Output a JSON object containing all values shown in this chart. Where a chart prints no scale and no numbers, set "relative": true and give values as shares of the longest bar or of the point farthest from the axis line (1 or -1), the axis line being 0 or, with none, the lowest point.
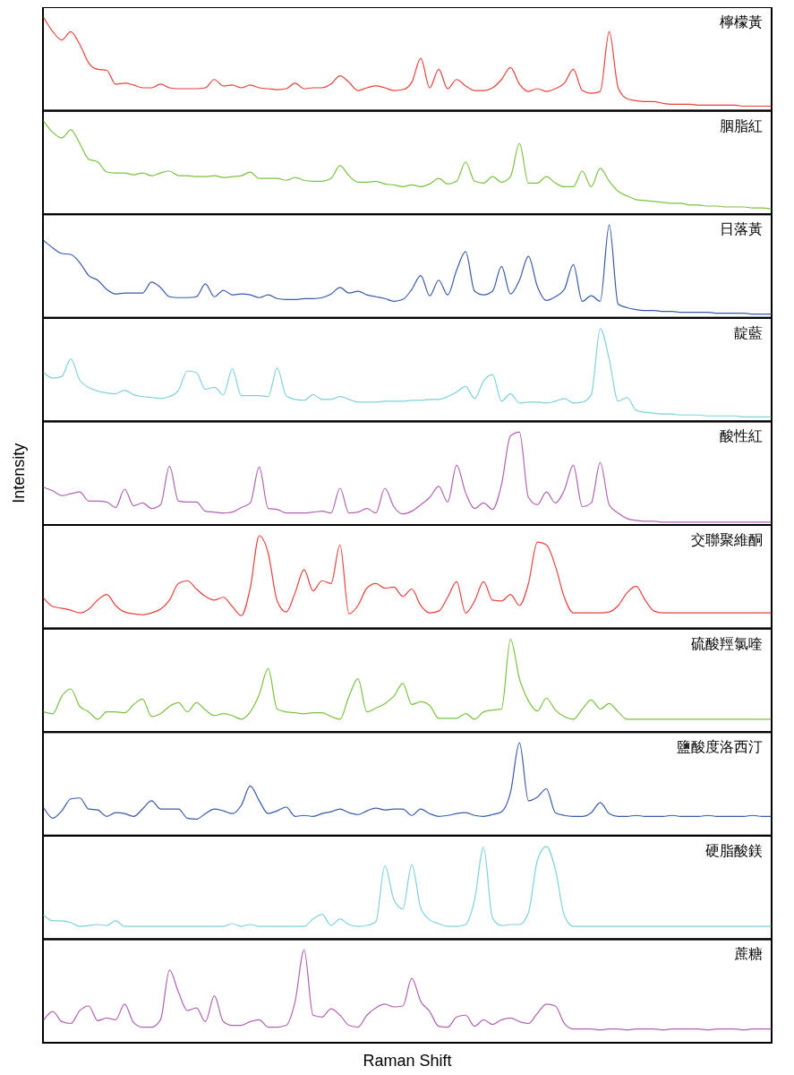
{
  "chart_data": [
    {
      "type": "line",
      "relative": true,
      "title": "檸檬黃",
      "categories": [
        null,
        null,
        null,
        null,
        null,
        null,
        null,
        null,
        null,
        null,
        null,
        null,
        null,
        null,
        null,
        null,
        null,
        null,
        null,
        null,
        null,
        null,
        null,
        null,
        null,
        null,
        null,
        null,
        null,
        null,
        null,
        null,
        null,
        null,
        null,
        null,
        null,
        null,
        null,
        null,
        null,
        null,
        null,
        null,
        null,
        null,
        null,
        null,
        null,
        null,
        null,
        null,
        null,
        null,
        null,
        null,
        null,
        null,
        null,
        null,
        null,
        null,
        null,
        null,
        null,
        null,
        null,
        null,
        null,
        null,
        null,
        null,
        null,
        null,
        null,
        null,
        null,
        null,
        null,
        null,
        null,
        null
      ],
      "series": [
        {
          "color": "#e8403c",
          "values": [
            1.0,
            0.85,
            0.76,
            0.85,
            0.71,
            0.51,
            0.44,
            0.43,
            0.28,
            0.29,
            0.27,
            0.24,
            0.24,
            0.28,
            0.24,
            0.23,
            0.23,
            0.23,
            0.24,
            0.33,
            0.26,
            0.27,
            0.24,
            0.27,
            0.24,
            0.23,
            0.22,
            0.23,
            0.29,
            0.23,
            0.24,
            0.24,
            0.28,
            0.37,
            0.3,
            0.21,
            0.24,
            0.26,
            0.24,
            0.21,
            0.22,
            0.3,
            0.56,
            0.24,
            0.44,
            0.23,
            0.33,
            0.26,
            0.21,
            0.21,
            0.24,
            0.33,
            0.46,
            0.28,
            0.2,
            0.23,
            0.2,
            0.23,
            0.29,
            0.44,
            0.21,
            0.18,
            0.2,
            0.85,
            0.24,
            0.12,
            0.1,
            0.09,
            0.09,
            0.07,
            0.06,
            0.06,
            0.06,
            0.05,
            0.05,
            0.05,
            0.05,
            0.05,
            0.04,
            0.04,
            0.04,
            0.04
          ]
        }
      ]
    },
    {
      "type": "line",
      "relative": true,
      "title": "胭脂紅",
      "categories": [
        null,
        null,
        null,
        null,
        null,
        null,
        null,
        null,
        null,
        null,
        null,
        null,
        null,
        null,
        null,
        null,
        null,
        null,
        null,
        null,
        null,
        null,
        null,
        null,
        null,
        null,
        null,
        null,
        null,
        null,
        null,
        null,
        null,
        null,
        null,
        null,
        null,
        null,
        null,
        null,
        null,
        null,
        null,
        null,
        null,
        null,
        null,
        null,
        null,
        null,
        null,
        null,
        null,
        null,
        null,
        null,
        null,
        null,
        null,
        null,
        null,
        null,
        null,
        null,
        null,
        null,
        null,
        null,
        null,
        null,
        null,
        null,
        null,
        null,
        null,
        null,
        null,
        null,
        null,
        null,
        null,
        null
      ],
      "series": [
        {
          "color": "#7cc242",
          "values": [
            1.0,
            0.88,
            0.82,
            0.91,
            0.76,
            0.59,
            0.56,
            0.45,
            0.44,
            0.44,
            0.42,
            0.44,
            0.41,
            0.44,
            0.46,
            0.41,
            0.41,
            0.4,
            0.4,
            0.41,
            0.39,
            0.4,
            0.41,
            0.45,
            0.38,
            0.38,
            0.38,
            0.36,
            0.39,
            0.36,
            0.35,
            0.35,
            0.38,
            0.52,
            0.41,
            0.34,
            0.34,
            0.35,
            0.32,
            0.31,
            0.29,
            0.31,
            0.29,
            0.32,
            0.38,
            0.32,
            0.35,
            0.56,
            0.35,
            0.33,
            0.4,
            0.34,
            0.4,
            0.76,
            0.33,
            0.33,
            0.4,
            0.33,
            0.29,
            0.29,
            0.46,
            0.29,
            0.49,
            0.35,
            0.24,
            0.19,
            0.15,
            0.14,
            0.13,
            0.12,
            0.11,
            0.11,
            0.09,
            0.09,
            0.08,
            0.08,
            0.07,
            0.07,
            0.07,
            0.06,
            0.06,
            0.05
          ]
        }
      ]
    },
    {
      "type": "line",
      "relative": true,
      "title": "日落黃",
      "categories": [
        null,
        null,
        null,
        null,
        null,
        null,
        null,
        null,
        null,
        null,
        null,
        null,
        null,
        null,
        null,
        null,
        null,
        null,
        null,
        null,
        null,
        null,
        null,
        null,
        null,
        null,
        null,
        null,
        null,
        null,
        null,
        null,
        null,
        null,
        null,
        null,
        null,
        null,
        null,
        null,
        null,
        null,
        null,
        null,
        null,
        null,
        null,
        null,
        null,
        null,
        null,
        null,
        null,
        null,
        null,
        null,
        null,
        null,
        null,
        null,
        null,
        null,
        null,
        null,
        null,
        null,
        null,
        null,
        null,
        null,
        null,
        null,
        null,
        null,
        null,
        null,
        null,
        null,
        null,
        null,
        null,
        null
      ],
      "series": [
        {
          "color": "#3a5aa8",
          "values": [
            0.83,
            0.75,
            0.69,
            0.68,
            0.59,
            0.45,
            0.4,
            0.3,
            0.25,
            0.26,
            0.26,
            0.26,
            0.38,
            0.32,
            0.22,
            0.21,
            0.21,
            0.22,
            0.36,
            0.22,
            0.29,
            0.24,
            0.25,
            0.24,
            0.21,
            0.24,
            0.2,
            0.19,
            0.19,
            0.2,
            0.2,
            0.21,
            0.25,
            0.32,
            0.26,
            0.28,
            0.24,
            0.22,
            0.2,
            0.17,
            0.19,
            0.3,
            0.45,
            0.23,
            0.4,
            0.24,
            0.51,
            0.71,
            0.28,
            0.24,
            0.28,
            0.55,
            0.25,
            0.4,
            0.66,
            0.33,
            0.18,
            0.22,
            0.3,
            0.57,
            0.17,
            0.23,
            0.17,
            1.0,
            0.14,
            0.1,
            0.08,
            0.07,
            0.07,
            0.06,
            0.06,
            0.05,
            0.05,
            0.05,
            0.05,
            0.04,
            0.04,
            0.04,
            0.04,
            0.03,
            0.03,
            0.03
          ]
        }
      ]
    },
    {
      "type": "line",
      "relative": true,
      "title": "靛藍",
      "categories": [
        null,
        null,
        null,
        null,
        null,
        null,
        null,
        null,
        null,
        null,
        null,
        null,
        null,
        null,
        null,
        null,
        null,
        null,
        null,
        null,
        null,
        null,
        null,
        null,
        null,
        null,
        null,
        null,
        null,
        null,
        null,
        null,
        null,
        null,
        null,
        null,
        null,
        null,
        null,
        null,
        null,
        null,
        null,
        null,
        null,
        null,
        null,
        null,
        null,
        null,
        null,
        null,
        null,
        null,
        null,
        null,
        null,
        null,
        null,
        null,
        null,
        null,
        null,
        null,
        null,
        null,
        null,
        null,
        null,
        null,
        null,
        null,
        null,
        null,
        null,
        null,
        null,
        null,
        null,
        null,
        null,
        null
      ],
      "series": [
        {
          "color": "#7fd2dc",
          "values": [
            0.52,
            0.46,
            0.48,
            0.67,
            0.44,
            0.36,
            0.32,
            0.3,
            0.29,
            0.33,
            0.28,
            0.26,
            0.25,
            0.24,
            0.26,
            0.33,
            0.54,
            0.52,
            0.34,
            0.36,
            0.28,
            0.56,
            0.27,
            0.27,
            0.27,
            0.26,
            0.57,
            0.27,
            0.23,
            0.22,
            0.28,
            0.23,
            0.23,
            0.26,
            0.23,
            0.2,
            0.2,
            0.2,
            0.21,
            0.21,
            0.21,
            0.22,
            0.22,
            0.23,
            0.23,
            0.26,
            0.31,
            0.37,
            0.24,
            0.43,
            0.5,
            0.21,
            0.29,
            0.19,
            0.2,
            0.2,
            0.19,
            0.21,
            0.24,
            0.19,
            0.2,
            0.28,
            1.0,
            0.67,
            0.21,
            0.25,
            0.11,
            0.09,
            0.08,
            0.07,
            0.07,
            0.06,
            0.06,
            0.06,
            0.05,
            0.05,
            0.05,
            0.05,
            0.04,
            0.04,
            0.04,
            0.04
          ]
        }
      ]
    },
    {
      "type": "line",
      "relative": true,
      "title": "酸性紅",
      "ylabel": "Intensity",
      "categories": [
        null,
        null,
        null,
        null,
        null,
        null,
        null,
        null,
        null,
        null,
        null,
        null,
        null,
        null,
        null,
        null,
        null,
        null,
        null,
        null,
        null,
        null,
        null,
        null,
        null,
        null,
        null,
        null,
        null,
        null,
        null,
        null,
        null,
        null,
        null,
        null,
        null,
        null,
        null,
        null,
        null,
        null,
        null,
        null,
        null,
        null,
        null,
        null,
        null,
        null,
        null,
        null,
        null,
        null,
        null,
        null,
        null,
        null,
        null,
        null,
        null,
        null,
        null,
        null,
        null,
        null,
        null,
        null,
        null,
        null,
        null,
        null,
        null,
        null,
        null,
        null,
        null,
        null,
        null,
        null,
        null,
        null
      ],
      "series": [
        {
          "color": "#b064b0",
          "values": [
            0.4,
            0.36,
            0.31,
            0.33,
            0.35,
            0.25,
            0.25,
            0.24,
            0.18,
            0.38,
            0.2,
            0.23,
            0.17,
            0.21,
            0.63,
            0.25,
            0.24,
            0.24,
            0.14,
            0.13,
            0.12,
            0.13,
            0.18,
            0.23,
            0.62,
            0.17,
            0.16,
            0.12,
            0.12,
            0.12,
            0.13,
            0.14,
            0.12,
            0.39,
            0.12,
            0.13,
            0.17,
            0.12,
            0.39,
            0.19,
            0.11,
            0.14,
            0.21,
            0.29,
            0.41,
            0.24,
            0.64,
            0.34,
            0.17,
            0.23,
            0.16,
            0.43,
            0.96,
            1.0,
            0.29,
            0.21,
            0.35,
            0.23,
            0.37,
            0.64,
            0.19,
            0.23,
            0.67,
            0.21,
            0.12,
            0.06,
            0.04,
            0.03,
            0.03,
            0.02,
            0.02,
            0.02,
            0.02,
            0.02,
            0.02,
            0.02,
            0.02,
            0.02,
            0.02,
            0.02,
            0.02,
            0.02
          ]
        }
      ]
    },
    {
      "type": "line",
      "relative": true,
      "title": "交聯聚維酮",
      "categories": [
        null,
        null,
        null,
        null,
        null,
        null,
        null,
        null,
        null,
        null,
        null,
        null,
        null,
        null,
        null,
        null,
        null,
        null,
        null,
        null,
        null,
        null,
        null,
        null,
        null,
        null,
        null,
        null,
        null,
        null,
        null,
        null,
        null,
        null,
        null,
        null,
        null,
        null,
        null,
        null,
        null,
        null,
        null,
        null,
        null,
        null,
        null,
        null,
        null,
        null,
        null,
        null,
        null,
        null,
        null,
        null,
        null,
        null,
        null,
        null,
        null,
        null,
        null,
        null,
        null,
        null,
        null,
        null,
        null,
        null,
        null,
        null,
        null,
        null,
        null,
        null,
        null,
        null,
        null,
        null,
        null,
        null
      ],
      "series": [
        {
          "color": "#e8403c",
          "values": [
            0.32,
            0.23,
            0.21,
            0.19,
            0.16,
            0.2,
            0.3,
            0.36,
            0.24,
            0.17,
            0.15,
            0.14,
            0.16,
            0.2,
            0.3,
            0.48,
            0.51,
            0.42,
            0.34,
            0.3,
            0.33,
            0.23,
            0.13,
            0.43,
            1.0,
            0.81,
            0.29,
            0.17,
            0.38,
            0.63,
            0.4,
            0.51,
            0.48,
            0.9,
            0.15,
            0.24,
            0.43,
            0.48,
            0.43,
            0.44,
            0.34,
            0.42,
            0.24,
            0.16,
            0.18,
            0.33,
            0.5,
            0.16,
            0.29,
            0.5,
            0.3,
            0.29,
            0.36,
            0.24,
            0.48,
            0.93,
            0.9,
            0.67,
            0.33,
            0.16,
            0.16,
            0.16,
            0.16,
            0.17,
            0.24,
            0.38,
            0.45,
            0.3,
            0.18,
            0.16,
            0.16,
            0.16,
            0.16,
            0.16,
            0.16,
            0.16,
            0.16,
            0.16,
            0.16,
            0.16,
            0.16,
            0.16
          ]
        }
      ]
    },
    {
      "type": "line",
      "relative": true,
      "title": "硫酸羥氯喹",
      "categories": [
        null,
        null,
        null,
        null,
        null,
        null,
        null,
        null,
        null,
        null,
        null,
        null,
        null,
        null,
        null,
        null,
        null,
        null,
        null,
        null,
        null,
        null,
        null,
        null,
        null,
        null,
        null,
        null,
        null,
        null,
        null,
        null,
        null,
        null,
        null,
        null,
        null,
        null,
        null,
        null,
        null,
        null,
        null,
        null,
        null,
        null,
        null,
        null,
        null,
        null,
        null,
        null,
        null,
        null,
        null,
        null,
        null,
        null,
        null,
        null,
        null,
        null,
        null,
        null,
        null,
        null,
        null,
        null,
        null,
        null,
        null,
        null,
        null,
        null,
        null,
        null,
        null,
        null,
        null,
        null,
        null,
        null
      ],
      "series": [
        {
          "color": "#7cc242",
          "values": [
            0.21,
            0.19,
            0.38,
            0.46,
            0.27,
            0.21,
            0.13,
            0.21,
            0.21,
            0.2,
            0.29,
            0.35,
            0.16,
            0.19,
            0.27,
            0.31,
            0.21,
            0.31,
            0.23,
            0.17,
            0.19,
            0.17,
            0.13,
            0.21,
            0.4,
            0.68,
            0.24,
            0.21,
            0.2,
            0.19,
            0.2,
            0.2,
            0.16,
            0.13,
            0.38,
            0.57,
            0.21,
            0.25,
            0.3,
            0.38,
            0.52,
            0.29,
            0.32,
            0.28,
            0.14,
            0.14,
            0.14,
            0.19,
            0.13,
            0.21,
            0.23,
            0.24,
            1.0,
            0.57,
            0.33,
            0.22,
            0.36,
            0.23,
            0.16,
            0.13,
            0.24,
            0.34,
            0.24,
            0.3,
            0.21,
            0.13,
            0.13,
            0.13,
            0.13,
            0.13,
            0.13,
            0.13,
            0.13,
            0.13,
            0.13,
            0.13,
            0.13,
            0.13,
            0.13,
            0.13,
            0.13,
            0.13
          ]
        }
      ]
    },
    {
      "type": "line",
      "relative": true,
      "title": "鹽酸度洛西汀",
      "categories": [
        null,
        null,
        null,
        null,
        null,
        null,
        null,
        null,
        null,
        null,
        null,
        null,
        null,
        null,
        null,
        null,
        null,
        null,
        null,
        null,
        null,
        null,
        null,
        null,
        null,
        null,
        null,
        null,
        null,
        null,
        null,
        null,
        null,
        null,
        null,
        null,
        null,
        null,
        null,
        null,
        null,
        null,
        null,
        null,
        null,
        null,
        null,
        null,
        null,
        null,
        null,
        null,
        null,
        null,
        null,
        null,
        null,
        null,
        null,
        null,
        null,
        null,
        null,
        null,
        null,
        null,
        null,
        null,
        null,
        null,
        null,
        null,
        null,
        null,
        null,
        null,
        null,
        null,
        null,
        null,
        null,
        null
      ],
      "series": [
        {
          "color": "#3a5aa8",
          "values": [
            0.29,
            0.18,
            0.26,
            0.39,
            0.4,
            0.28,
            0.27,
            0.2,
            0.24,
            0.23,
            0.2,
            0.28,
            0.37,
            0.28,
            0.28,
            0.28,
            0.18,
            0.17,
            0.23,
            0.28,
            0.26,
            0.23,
            0.32,
            0.53,
            0.37,
            0.23,
            0.26,
            0.3,
            0.2,
            0.21,
            0.2,
            0.23,
            0.25,
            0.28,
            0.24,
            0.22,
            0.26,
            0.29,
            0.27,
            0.28,
            0.28,
            0.21,
            0.28,
            0.23,
            0.2,
            0.21,
            0.23,
            0.24,
            0.21,
            0.2,
            0.22,
            0.25,
            0.46,
            1.0,
            0.37,
            0.41,
            0.5,
            0.24,
            0.21,
            0.2,
            0.2,
            0.24,
            0.35,
            0.23,
            0.2,
            0.2,
            0.21,
            0.2,
            0.2,
            0.2,
            0.21,
            0.2,
            0.2,
            0.2,
            0.21,
            0.2,
            0.2,
            0.2,
            0.2,
            0.21,
            0.2,
            0.2
          ]
        }
      ]
    },
    {
      "type": "line",
      "relative": true,
      "title": "硬脂酸鎂",
      "categories": [
        null,
        null,
        null,
        null,
        null,
        null,
        null,
        null,
        null,
        null,
        null,
        null,
        null,
        null,
        null,
        null,
        null,
        null,
        null,
        null,
        null,
        null,
        null,
        null,
        null,
        null,
        null,
        null,
        null,
        null,
        null,
        null,
        null,
        null,
        null,
        null,
        null,
        null,
        null,
        null,
        null,
        null,
        null,
        null,
        null,
        null,
        null,
        null,
        null,
        null,
        null,
        null,
        null,
        null,
        null,
        null,
        null,
        null,
        null,
        null,
        null,
        null,
        null,
        null,
        null,
        null,
        null,
        null,
        null,
        null,
        null,
        null,
        null,
        null,
        null,
        null,
        null,
        null,
        null,
        null,
        null,
        null
      ],
      "series": [
        {
          "color": "#7fd2dc",
          "values": [
            0.25,
            0.19,
            0.19,
            0.17,
            0.13,
            0.14,
            0.15,
            0.14,
            0.19,
            0.13,
            0.13,
            0.13,
            0.13,
            0.13,
            0.13,
            0.13,
            0.13,
            0.13,
            0.13,
            0.13,
            0.13,
            0.16,
            0.13,
            0.15,
            0.13,
            0.13,
            0.13,
            0.13,
            0.13,
            0.13,
            0.21,
            0.26,
            0.14,
            0.21,
            0.15,
            0.13,
            0.14,
            0.18,
            0.79,
            0.42,
            0.32,
            0.8,
            0.33,
            0.2,
            0.16,
            0.13,
            0.13,
            0.15,
            0.42,
            0.99,
            0.22,
            0.14,
            0.15,
            0.15,
            0.28,
            0.85,
            1.0,
            0.75,
            0.25,
            0.13,
            0.13,
            0.13,
            0.13,
            0.13,
            0.13,
            0.13,
            0.13,
            0.13,
            0.13,
            0.13,
            0.13,
            0.13,
            0.13,
            0.13,
            0.13,
            0.13,
            0.13,
            0.13,
            0.13,
            0.13,
            0.13,
            0.13
          ]
        }
      ]
    },
    {
      "type": "line",
      "relative": true,
      "title": "蔗糖",
      "xlabel": "Raman Shift",
      "categories": [
        null,
        null,
        null,
        null,
        null,
        null,
        null,
        null,
        null,
        null,
        null,
        null,
        null,
        null,
        null,
        null,
        null,
        null,
        null,
        null,
        null,
        null,
        null,
        null,
        null,
        null,
        null,
        null,
        null,
        null,
        null,
        null,
        null,
        null,
        null,
        null,
        null,
        null,
        null,
        null,
        null,
        null,
        null,
        null,
        null,
        null,
        null,
        null,
        null,
        null,
        null,
        null,
        null,
        null,
        null,
        null,
        null,
        null,
        null,
        null,
        null,
        null,
        null,
        null,
        null,
        null,
        null,
        null,
        null,
        null,
        null,
        null,
        null,
        null,
        null,
        null,
        null,
        null,
        null,
        null,
        null,
        null
      ],
      "series": [
        {
          "color": "#b064b0",
          "values": [
            0.24,
            0.33,
            0.22,
            0.2,
            0.34,
            0.39,
            0.23,
            0.26,
            0.24,
            0.41,
            0.21,
            0.16,
            0.16,
            0.24,
            0.78,
            0.54,
            0.34,
            0.37,
            0.22,
            0.5,
            0.22,
            0.18,
            0.18,
            0.22,
            0.24,
            0.16,
            0.16,
            0.18,
            0.44,
            1.0,
            0.29,
            0.27,
            0.36,
            0.29,
            0.18,
            0.16,
            0.29,
            0.37,
            0.41,
            0.38,
            0.39,
            0.69,
            0.44,
            0.33,
            0.17,
            0.16,
            0.27,
            0.29,
            0.17,
            0.24,
            0.19,
            0.24,
            0.26,
            0.22,
            0.2,
            0.31,
            0.41,
            0.39,
            0.2,
            0.14,
            0.14,
            0.14,
            0.13,
            0.14,
            0.14,
            0.13,
            0.14,
            0.14,
            0.14,
            0.13,
            0.14,
            0.14,
            0.14,
            0.14,
            0.13,
            0.14,
            0.14,
            0.14,
            0.13,
            0.14,
            0.14,
            0.14
          ]
        }
      ]
    }
  ]
}
